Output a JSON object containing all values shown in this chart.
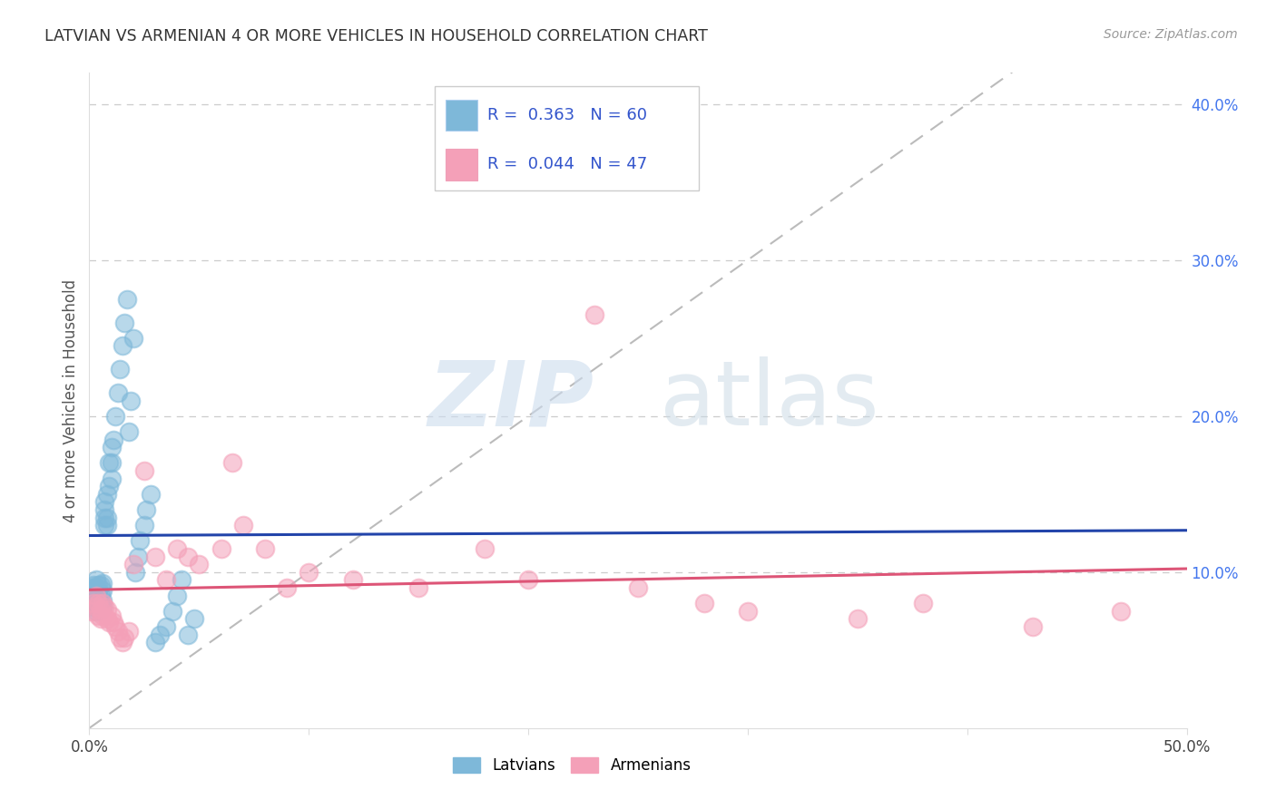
{
  "title": "LATVIAN VS ARMENIAN 4 OR MORE VEHICLES IN HOUSEHOLD CORRELATION CHART",
  "source": "Source: ZipAtlas.com",
  "ylabel": "4 or more Vehicles in Household",
  "xlim": [
    0.0,
    0.5
  ],
  "ylim": [
    0.0,
    0.42
  ],
  "xtick_values": [
    0.0,
    0.1,
    0.2,
    0.3,
    0.4,
    0.5
  ],
  "xtick_labels": [
    "0.0%",
    "",
    "",
    "",
    "",
    "50.0%"
  ],
  "ytick_values": [
    0.1,
    0.2,
    0.3,
    0.4
  ],
  "ytick_labels_right": [
    "10.0%",
    "20.0%",
    "30.0%",
    "40.0%"
  ],
  "latvian_color": "#7eb8d9",
  "armenian_color": "#f4a0b8",
  "trend_latvian_color": "#2244aa",
  "trend_armenian_color": "#dd5577",
  "diag_color": "#bbbbbb",
  "legend_box_color": "#3355cc",
  "latvian_R": 0.363,
  "latvian_N": 60,
  "armenian_R": 0.044,
  "armenian_N": 47,
  "latvian_x": [
    0.001,
    0.001,
    0.001,
    0.002,
    0.002,
    0.002,
    0.002,
    0.003,
    0.003,
    0.003,
    0.003,
    0.003,
    0.004,
    0.004,
    0.004,
    0.004,
    0.005,
    0.005,
    0.005,
    0.005,
    0.006,
    0.006,
    0.006,
    0.006,
    0.007,
    0.007,
    0.007,
    0.007,
    0.008,
    0.008,
    0.008,
    0.009,
    0.009,
    0.01,
    0.01,
    0.01,
    0.011,
    0.012,
    0.013,
    0.014,
    0.015,
    0.016,
    0.017,
    0.018,
    0.019,
    0.02,
    0.021,
    0.022,
    0.023,
    0.025,
    0.026,
    0.028,
    0.03,
    0.032,
    0.035,
    0.038,
    0.04,
    0.042,
    0.045,
    0.048
  ],
  "latvian_y": [
    0.08,
    0.085,
    0.09,
    0.078,
    0.082,
    0.088,
    0.092,
    0.075,
    0.08,
    0.085,
    0.09,
    0.095,
    0.078,
    0.082,
    0.088,
    0.092,
    0.076,
    0.08,
    0.086,
    0.092,
    0.078,
    0.082,
    0.088,
    0.093,
    0.13,
    0.135,
    0.14,
    0.145,
    0.13,
    0.135,
    0.15,
    0.155,
    0.17,
    0.16,
    0.17,
    0.18,
    0.185,
    0.2,
    0.215,
    0.23,
    0.245,
    0.26,
    0.275,
    0.19,
    0.21,
    0.25,
    0.1,
    0.11,
    0.12,
    0.13,
    0.14,
    0.15,
    0.055,
    0.06,
    0.065,
    0.075,
    0.085,
    0.095,
    0.06,
    0.07
  ],
  "armenian_x": [
    0.001,
    0.002,
    0.003,
    0.003,
    0.004,
    0.004,
    0.005,
    0.005,
    0.006,
    0.006,
    0.007,
    0.008,
    0.008,
    0.009,
    0.01,
    0.011,
    0.012,
    0.013,
    0.014,
    0.015,
    0.016,
    0.018,
    0.02,
    0.025,
    0.03,
    0.035,
    0.04,
    0.045,
    0.05,
    0.06,
    0.065,
    0.07,
    0.08,
    0.09,
    0.1,
    0.12,
    0.15,
    0.18,
    0.2,
    0.23,
    0.25,
    0.28,
    0.3,
    0.35,
    0.38,
    0.43,
    0.47
  ],
  "armenian_y": [
    0.075,
    0.08,
    0.078,
    0.085,
    0.072,
    0.08,
    0.07,
    0.076,
    0.072,
    0.08,
    0.078,
    0.07,
    0.076,
    0.068,
    0.072,
    0.068,
    0.065,
    0.062,
    0.058,
    0.055,
    0.058,
    0.062,
    0.105,
    0.165,
    0.11,
    0.095,
    0.115,
    0.11,
    0.105,
    0.115,
    0.17,
    0.13,
    0.115,
    0.09,
    0.1,
    0.095,
    0.09,
    0.115,
    0.095,
    0.265,
    0.09,
    0.08,
    0.075,
    0.07,
    0.08,
    0.065,
    0.075
  ]
}
